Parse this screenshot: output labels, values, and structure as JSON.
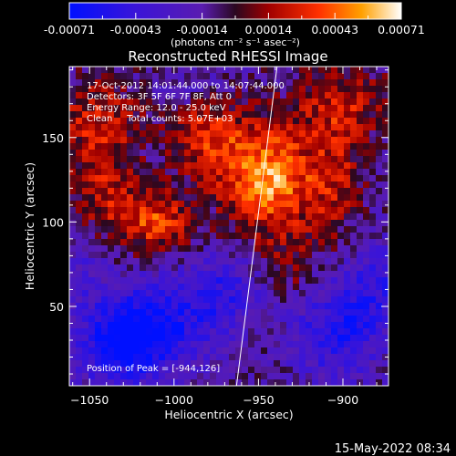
{
  "colorbar": {
    "ticks": [
      "-0.00071",
      "-0.00043",
      "-0.00014",
      "0.00014",
      "0.00043",
      "0.00071"
    ],
    "unit_label": "(photons cm⁻² s⁻¹ asec⁻²)"
  },
  "annotations": {
    "time_range": "17-Oct-2012 14:01:44.000 to 14:07:44.000",
    "detectors": "Detectors: 3F 5F 6F 7F 8F, Att 0",
    "energy_range": "Energy Range: 12.0 - 25.0 keV",
    "clean_counts": "Clean     Total counts: 5.07E+03",
    "peak_position": "Position of Peak = [-944,126]"
  },
  "footer": {
    "datestamp": "15-May-2022 08:34"
  },
  "chart_data": {
    "type": "heatmap",
    "title": "Reconstructed RHESSI Image",
    "xlabel": "Heliocentric X (arcsec)",
    "ylabel": "Heliocentric Y (arcsec)",
    "xlim": [
      -1062,
      -873
    ],
    "ylim": [
      3,
      192
    ],
    "x_ticks": [
      -1050,
      -1000,
      -950,
      -900
    ],
    "y_ticks": [
      50,
      100,
      150
    ],
    "colorscale_range": [
      -0.00071,
      0.00071
    ],
    "colormap": "blue-purple-red-orange-yellow-white",
    "peak_position": [
      -944,
      126
    ],
    "limb_line": [
      [
        -963,
        3
      ],
      [
        -939,
        192
      ]
    ],
    "sources": [
      {
        "x": -944,
        "y": 126,
        "amp": 0.00066,
        "sx": 18,
        "sy": 22
      },
      {
        "x": -980,
        "y": 150,
        "amp": 0.0004,
        "sx": 15,
        "sy": 18
      },
      {
        "x": -1010,
        "y": 100,
        "amp": 0.00045,
        "sx": 15,
        "sy": 12
      },
      {
        "x": -1040,
        "y": 115,
        "amp": 0.0003,
        "sx": 14,
        "sy": 18
      },
      {
        "x": -1045,
        "y": 160,
        "amp": 0.00035,
        "sx": 18,
        "sy": 18
      },
      {
        "x": -905,
        "y": 125,
        "amp": 0.0003,
        "sx": 12,
        "sy": 25
      },
      {
        "x": -900,
        "y": 170,
        "amp": 0.0003,
        "sx": 20,
        "sy": 15
      },
      {
        "x": -930,
        "y": 75,
        "amp": 0.00018,
        "sx": 12,
        "sy": 15
      },
      {
        "x": -1030,
        "y": 30,
        "amp": -0.00065,
        "sx": 18,
        "sy": 18
      },
      {
        "x": -1000,
        "y": 40,
        "amp": -0.00035,
        "sx": 22,
        "sy": 20
      },
      {
        "x": -905,
        "y": 35,
        "amp": -0.0004,
        "sx": 18,
        "sy": 20
      },
      {
        "x": -880,
        "y": 60,
        "amp": -0.0003,
        "sx": 15,
        "sy": 20
      },
      {
        "x": -970,
        "y": 60,
        "amp": -0.0003,
        "sx": 15,
        "sy": 15
      },
      {
        "x": -1055,
        "y": 75,
        "amp": -0.0002,
        "sx": 10,
        "sy": 15
      },
      {
        "x": -990,
        "y": 180,
        "amp": -0.00015,
        "sx": 15,
        "sy": 10
      }
    ]
  }
}
